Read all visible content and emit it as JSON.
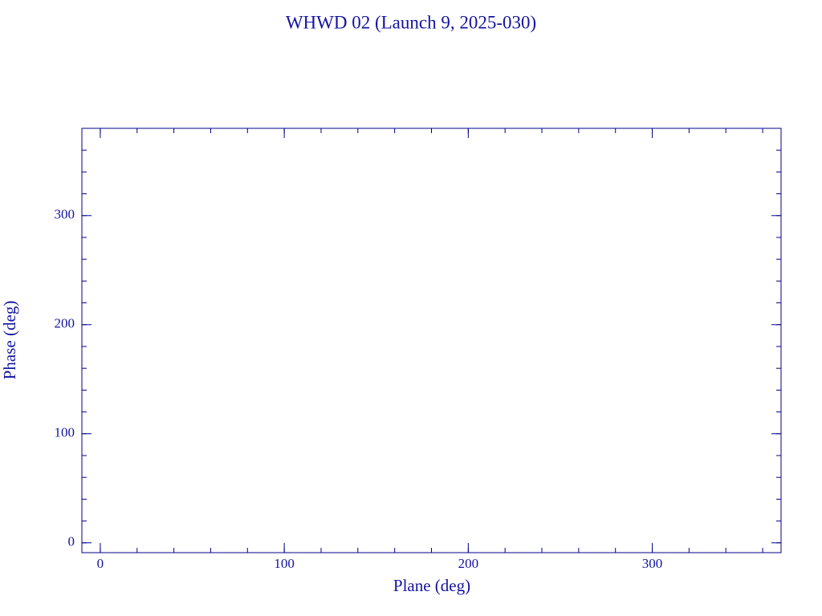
{
  "chart_data": {
    "type": "scatter",
    "title": "WHWD 02 (Launch 9, 2025-030)",
    "xlabel": "Plane (deg)",
    "ylabel": "Phase (deg)",
    "x": [],
    "values": [],
    "xlim": [
      -10,
      370
    ],
    "ylim": [
      -9,
      380
    ],
    "xticks": [
      0,
      100,
      200,
      300
    ],
    "yticks": [
      0,
      100,
      200,
      300
    ],
    "xminorticks": [
      0,
      20,
      40,
      60,
      80,
      100,
      120,
      140,
      160,
      180,
      200,
      220,
      240,
      260,
      280,
      300,
      320,
      340,
      360
    ],
    "yminorticks": [
      0,
      20,
      40,
      60,
      80,
      100,
      120,
      140,
      160,
      180,
      200,
      220,
      240,
      260,
      280,
      300,
      320,
      340,
      360
    ],
    "color": "#00008b"
  }
}
